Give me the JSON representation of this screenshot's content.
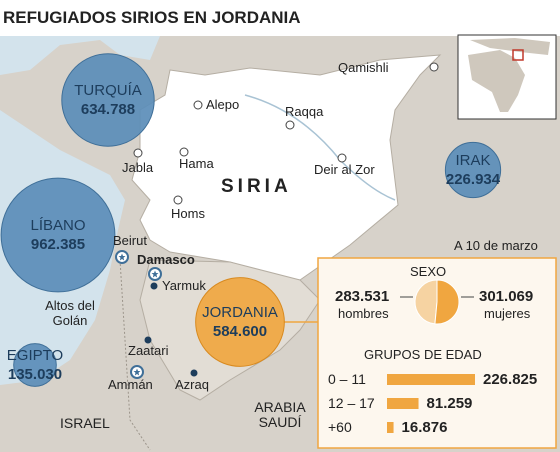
{
  "title": "REFUGIADOS SIRIOS EN JORDANIA",
  "country_label": "SIRIA",
  "date_note": "A 10 de marzo",
  "bubbles": [
    {
      "name": "TURQUÍA",
      "value": 634788,
      "label": "634.788"
    },
    {
      "name": "LÍBANO",
      "value": 962385,
      "label": "962.385"
    },
    {
      "name": "EGIPTO",
      "value": 135030,
      "label": "135.030"
    },
    {
      "name": "IRAK",
      "value": 226934,
      "label": "226.934"
    },
    {
      "name": "JORDANIA",
      "value": 584600,
      "label": "584.600"
    }
  ],
  "cities": [
    "Qamishli",
    "Alepo",
    "Raqqa",
    "Jabla",
    "Hama",
    "Deir al Zor",
    "Homs",
    "Beirut",
    "Damasco",
    "Yarmuk",
    "Zaatari",
    "Ammán",
    "Azraq"
  ],
  "regions": [
    "Altos del Golán",
    "ISRAEL",
    "ARABIA SAUDÍ"
  ],
  "sex": {
    "title": "SEXO",
    "series": [
      {
        "name": "hombres",
        "value": 283531,
        "label": "283.531"
      },
      {
        "name": "mujeres",
        "value": 301069,
        "label": "301.069"
      }
    ]
  },
  "age": {
    "title": "GRUPOS DE EDAD",
    "rows": [
      {
        "name": "0 – 11",
        "value": 226825,
        "label": "226.825"
      },
      {
        "name": "12 – 17",
        "value": 81259,
        "label": "81.259"
      },
      {
        "name": "+60",
        "value": 16876,
        "label": "16.876"
      }
    ]
  }
}
